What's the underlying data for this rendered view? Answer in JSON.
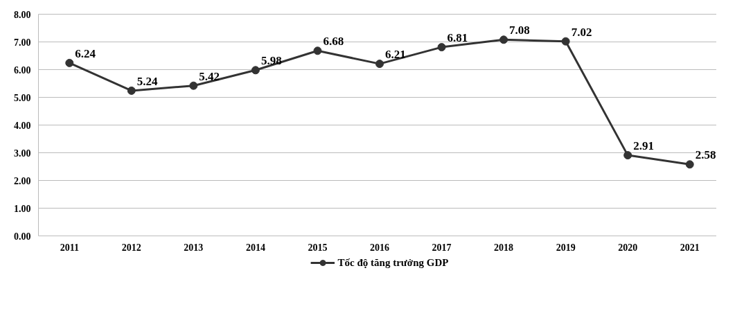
{
  "chart_data": {
    "type": "line",
    "categories": [
      "2011",
      "2012",
      "2013",
      "2014",
      "2015",
      "2016",
      "2017",
      "2018",
      "2019",
      "2020",
      "2021"
    ],
    "series": [
      {
        "name": "Tốc độ tăng trưởng GDP",
        "color": "#333333",
        "values": [
          6.24,
          5.24,
          5.42,
          5.98,
          6.68,
          6.21,
          6.81,
          7.08,
          7.02,
          2.91,
          2.58
        ]
      }
    ],
    "ylim": [
      0,
      8
    ],
    "yticks": [
      {
        "value": 0,
        "label": "0.00"
      },
      {
        "value": 1,
        "label": "1.00"
      },
      {
        "value": 2,
        "label": "2.00"
      },
      {
        "value": 3,
        "label": "3.00"
      },
      {
        "value": 4,
        "label": "4.00"
      },
      {
        "value": 5,
        "label": "5.00"
      },
      {
        "value": 6,
        "label": "6.00"
      },
      {
        "value": 7,
        "label": "7.00"
      },
      {
        "value": 8,
        "label": "8.00"
      }
    ],
    "grid": "y",
    "legend": "bottom",
    "marker": "circle",
    "line_style": "solid",
    "data_labels": true
  }
}
